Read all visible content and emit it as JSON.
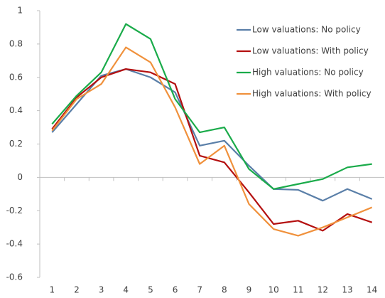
{
  "chart_data": {
    "type": "line",
    "categories": [
      "1",
      "2",
      "3",
      "4",
      "5",
      "6",
      "7",
      "8",
      "9",
      "10",
      "11",
      "12",
      "13",
      "14"
    ],
    "series": [
      {
        "name": "Low valuations: No policy",
        "color": "#5a7fa8",
        "values": [
          0.27,
          0.44,
          0.61,
          0.65,
          0.6,
          0.51,
          0.19,
          0.22,
          0.07,
          -0.07,
          -0.075,
          -0.14,
          -0.07,
          -0.13
        ]
      },
      {
        "name": "Low valuations: With policy",
        "color": "#b40f0f",
        "values": [
          0.29,
          0.48,
          0.6,
          0.65,
          0.63,
          0.56,
          0.13,
          0.09,
          -0.09,
          -0.28,
          -0.26,
          -0.32,
          -0.22,
          -0.27
        ]
      },
      {
        "name": "High valuations: No policy",
        "color": "#1aab4a",
        "values": [
          0.32,
          0.49,
          0.63,
          0.92,
          0.83,
          0.47,
          0.27,
          0.3,
          0.05,
          -0.07,
          -0.04,
          -0.01,
          0.06,
          0.08
        ]
      },
      {
        "name": "High valuations: With policy",
        "color": "#f0913c",
        "values": [
          0.28,
          0.47,
          0.56,
          0.78,
          0.69,
          0.42,
          0.08,
          0.19,
          -0.16,
          -0.31,
          -0.35,
          -0.3,
          -0.24,
          -0.18
        ]
      }
    ],
    "ylim": [
      -0.6,
      1
    ],
    "yticks": [
      -0.6,
      -0.4,
      -0.2,
      0,
      0.2,
      0.4,
      0.6,
      0.8,
      1
    ],
    "grid": false,
    "legend": "upper right"
  }
}
